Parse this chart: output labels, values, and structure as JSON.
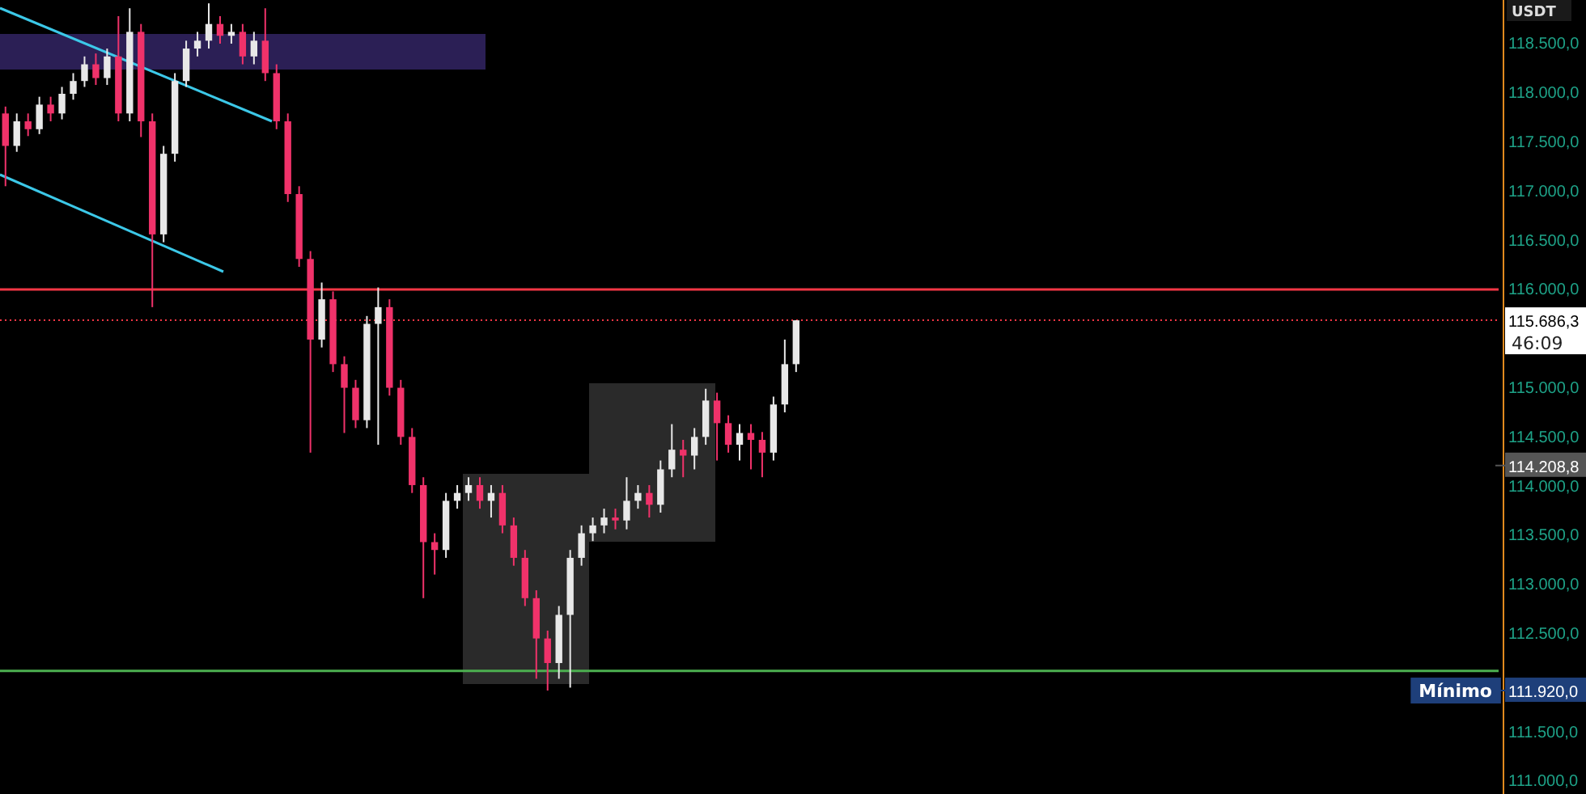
{
  "chart_data": {
    "type": "candlestick",
    "ylabel": "USDT",
    "categories": [
      null,
      null,
      null,
      null,
      null,
      null,
      null,
      null,
      null,
      null,
      null,
      null,
      null,
      null,
      null,
      null,
      null,
      null,
      null,
      null,
      null,
      null,
      null,
      null,
      null,
      null,
      null,
      null,
      null,
      null,
      null,
      null,
      null,
      null,
      null,
      null,
      null,
      null,
      null,
      null,
      null,
      null,
      null,
      null,
      null,
      null,
      null,
      null,
      null,
      null,
      null,
      null,
      null,
      null,
      null,
      null,
      null,
      null,
      null,
      null,
      null,
      null,
      null,
      null,
      null,
      null,
      null,
      null,
      null,
      null,
      null,
      null,
      null,
      null,
      null,
      null,
      null,
      null,
      null,
      null,
      null,
      null,
      null,
      null,
      null,
      null,
      null,
      null,
      null,
      null,
      null,
      null,
      null,
      null,
      null,
      null,
      null,
      null,
      null,
      null,
      null,
      null,
      null,
      null,
      null,
      null,
      null,
      null,
      null,
      null,
      null,
      null,
      null,
      null,
      null,
      null,
      null,
      null,
      null,
      null,
      null,
      null,
      null,
      null,
      null,
      null,
      null,
      null,
      null,
      null,
      null,
      null
    ],
    "ohlc": [
      [
        117790,
        117860,
        117050,
        117460
      ],
      [
        117460,
        117790,
        117400,
        117710
      ],
      [
        117710,
        117790,
        117560,
        117630
      ],
      [
        117630,
        117960,
        117580,
        117880
      ],
      [
        117880,
        117960,
        117710,
        117790
      ],
      [
        117790,
        118060,
        117730,
        117990
      ],
      [
        117990,
        118200,
        117930,
        118120
      ],
      [
        118120,
        118370,
        118060,
        118290
      ],
      [
        118290,
        118400,
        118080,
        118150
      ],
      [
        118150,
        118450,
        118080,
        118370
      ],
      [
        118370,
        118780,
        117710,
        117790
      ],
      [
        117790,
        118860,
        117710,
        118620
      ],
      [
        118620,
        118700,
        117550,
        117710
      ],
      [
        117710,
        117790,
        115820,
        116560
      ],
      [
        116560,
        117460,
        116480,
        117380
      ],
      [
        117380,
        118200,
        117300,
        118120
      ],
      [
        118120,
        118530,
        118060,
        118450
      ],
      [
        118450,
        118620,
        118370,
        118530
      ],
      [
        118530,
        118910,
        118450,
        118700
      ],
      [
        118700,
        118780,
        118500,
        118580
      ],
      [
        118580,
        118700,
        118500,
        118620
      ],
      [
        118620,
        118700,
        118290,
        118370
      ],
      [
        118370,
        118620,
        118290,
        118530
      ],
      [
        118530,
        118860,
        118120,
        118200
      ],
      [
        118200,
        118290,
        117630,
        117710
      ],
      [
        117710,
        117790,
        116890,
        116970
      ],
      [
        116970,
        117050,
        116230,
        116310
      ],
      [
        116310,
        116390,
        114340,
        115490
      ],
      [
        115490,
        116070,
        115410,
        115900
      ],
      [
        115900,
        115980,
        115160,
        115240
      ],
      [
        115240,
        115320,
        114540,
        115000
      ],
      [
        115000,
        115080,
        114590,
        114670
      ],
      [
        114670,
        115730,
        114590,
        115650
      ],
      [
        115650,
        116020,
        114420,
        115820
      ],
      [
        115820,
        115900,
        114920,
        115000
      ],
      [
        115000,
        115080,
        114420,
        114500
      ],
      [
        114500,
        114590,
        113930,
        114010
      ],
      [
        114010,
        114090,
        112860,
        113430
      ],
      [
        113430,
        113520,
        113100,
        113350
      ],
      [
        113350,
        113930,
        113270,
        113850
      ],
      [
        113850,
        114010,
        113770,
        113930
      ],
      [
        113930,
        114090,
        113850,
        114010
      ],
      [
        114010,
        114090,
        113770,
        113850
      ],
      [
        113850,
        114010,
        113680,
        113930
      ],
      [
        113930,
        114010,
        113520,
        113600
      ],
      [
        113600,
        113680,
        113190,
        113270
      ],
      [
        113270,
        113350,
        112780,
        112860
      ],
      [
        112860,
        112940,
        112040,
        112450
      ],
      [
        112450,
        112530,
        111920,
        112200
      ],
      [
        112200,
        112780,
        112040,
        112690
      ],
      [
        112690,
        113350,
        111950,
        113270
      ],
      [
        113270,
        113600,
        113190,
        113520
      ],
      [
        113520,
        113680,
        113440,
        113600
      ],
      [
        113600,
        113770,
        113520,
        113680
      ],
      [
        113680,
        113770,
        113560,
        113650
      ],
      [
        113650,
        114090,
        113560,
        113850
      ],
      [
        113850,
        114010,
        113770,
        113930
      ],
      [
        113930,
        114010,
        113680,
        113810
      ],
      [
        113810,
        114260,
        113730,
        114170
      ],
      [
        114170,
        114630,
        114090,
        114370
      ],
      [
        114370,
        114470,
        114090,
        114310
      ],
      [
        114310,
        114590,
        114170,
        114500
      ],
      [
        114500,
        114990,
        114420,
        114870
      ],
      [
        114870,
        114950,
        114260,
        114640
      ],
      [
        114640,
        114720,
        114340,
        114420
      ],
      [
        114420,
        114630,
        114260,
        114540
      ],
      [
        114540,
        114630,
        114170,
        114470
      ],
      [
        114470,
        114550,
        114090,
        114340
      ],
      [
        114340,
        114910,
        114260,
        114830
      ],
      [
        114830,
        115490,
        114750,
        115240
      ],
      [
        115240,
        115686,
        115160,
        115686
      ],
      null,
      null,
      null,
      null,
      null,
      null,
      null,
      null,
      null,
      null,
      null,
      null,
      null,
      null,
      null,
      null,
      null,
      null,
      null,
      null,
      null,
      null,
      null,
      null,
      null,
      null,
      null,
      null,
      null,
      null,
      null,
      null,
      null,
      null,
      null,
      null,
      null,
      null,
      null,
      null,
      null,
      null,
      null,
      null,
      null,
      null,
      null,
      null,
      null,
      null,
      null,
      null,
      null,
      null,
      null,
      null,
      null,
      null,
      null,
      null,
      null
    ],
    "ylim": [
      110868,
      118944
    ],
    "yticks": [
      {
        "value": 118500,
        "label": "118.500,0"
      },
      {
        "value": 118000,
        "label": "118.000,0"
      },
      {
        "value": 117500,
        "label": "117.500,0"
      },
      {
        "value": 117000,
        "label": "117.000,0"
      },
      {
        "value": 116500,
        "label": "116.500,0"
      },
      {
        "value": 116000,
        "label": "116.000,0"
      },
      {
        "value": 115000,
        "label": "115.000,0"
      },
      {
        "value": 114500,
        "label": "114.500,0"
      },
      {
        "value": 114000,
        "label": "114.000,0"
      },
      {
        "value": 113500,
        "label": "113.500,0"
      },
      {
        "value": 113000,
        "label": "113.000,0"
      },
      {
        "value": 112500,
        "label": "112.500,0"
      },
      {
        "value": 111500,
        "label": "111.500,0"
      },
      {
        "value": 111000,
        "label": "111.000,0"
      }
    ],
    "tick_labels": "y",
    "ref_lines": [
      {
        "axis": "y",
        "value": 115686.3,
        "label": "115.686,3",
        "color": "#f23645",
        "line_style": "dotted"
      },
      {
        "axis": "y",
        "value": 116000,
        "color": "#f23645",
        "line_style": "solid"
      },
      {
        "axis": "y",
        "value": 112120,
        "color": "#4caf50",
        "line_style": "solid"
      },
      {
        "axis": "y",
        "value": 114208.8,
        "label": "114.208,8",
        "color": "#555555"
      },
      {
        "axis": "y",
        "value": 111920,
        "label": "111.920,0",
        "color": "#1e3f7a"
      }
    ],
    "annotations": [
      "46:09",
      "Mínimo"
    ]
  }
}
